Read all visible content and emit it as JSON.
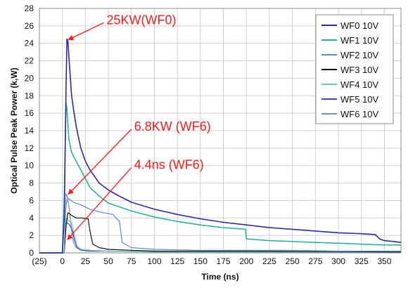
{
  "chart_data": {
    "type": "line",
    "xlabel": "Time (ns)",
    "ylabel": "Optical Pulse Peak Power (k,W)",
    "xlim": [
      -25,
      368
    ],
    "ylim": [
      0,
      28
    ],
    "x_ticks": [
      {
        "value": -25,
        "label": "(25)",
        "color": "#d40000"
      },
      {
        "value": 0,
        "label": "0"
      },
      {
        "value": 25,
        "label": "25"
      },
      {
        "value": 50,
        "label": "50"
      },
      {
        "value": 75,
        "label": "75"
      },
      {
        "value": 100,
        "label": "100"
      },
      {
        "value": 125,
        "label": "125"
      },
      {
        "value": 150,
        "label": "150"
      },
      {
        "value": 175,
        "label": "175"
      },
      {
        "value": 200,
        "label": "200"
      },
      {
        "value": 225,
        "label": "225"
      },
      {
        "value": 250,
        "label": "250"
      },
      {
        "value": 275,
        "label": "275"
      },
      {
        "value": 300,
        "label": "300"
      },
      {
        "value": 325,
        "label": "325"
      },
      {
        "value": 350,
        "label": "350"
      }
    ],
    "y_ticks": [
      0,
      2,
      4,
      6,
      8,
      10,
      12,
      14,
      16,
      18,
      20,
      22,
      24,
      26,
      28
    ],
    "grid": true,
    "legend_position": "top-right",
    "series": [
      {
        "name": "WF0 10V",
        "color": "#2a2aa8",
        "width": 1.6,
        "x": [
          -25,
          0,
          2,
          4,
          5,
          6,
          8,
          10,
          12,
          15,
          20,
          25,
          30,
          40,
          50,
          60,
          75,
          100,
          125,
          150,
          175,
          200,
          225,
          250,
          275,
          300,
          325,
          340,
          345,
          350,
          360,
          368
        ],
        "y": [
          0,
          0,
          4,
          19,
          24.5,
          24.3,
          21,
          18,
          16.5,
          14.5,
          12,
          10.5,
          9.5,
          8,
          7.2,
          6.6,
          5.8,
          5,
          4.4,
          3.9,
          3.5,
          3.2,
          2.9,
          2.7,
          2.5,
          2.3,
          2.2,
          2.1,
          1.6,
          1.4,
          1.3,
          1.2
        ]
      },
      {
        "name": "WF1 10V",
        "color": "#20b08a",
        "width": 1.5,
        "x": [
          -25,
          0,
          2,
          3,
          4,
          5,
          7,
          10,
          15,
          20,
          30,
          40,
          50,
          75,
          100,
          125,
          150,
          175,
          199,
          200,
          225,
          250,
          275,
          300,
          325,
          350,
          368
        ],
        "y": [
          0,
          0,
          6,
          12,
          17.2,
          16.5,
          13,
          11.5,
          10.5,
          9.5,
          7.5,
          6.5,
          5.7,
          4.8,
          4.1,
          3.6,
          3.2,
          2.9,
          2.7,
          1.6,
          1.4,
          1.3,
          1.2,
          1.1,
          1.0,
          0.9,
          0.9
        ]
      },
      {
        "name": "WF2 10V",
        "color": "#5b8fc7",
        "width": 1.2,
        "x": [
          -25,
          2,
          3,
          4,
          6,
          8,
          12,
          20,
          30,
          40,
          55,
          62,
          65,
          75,
          100,
          150,
          200,
          250,
          300,
          368
        ],
        "y": [
          0,
          0,
          3.5,
          5.5,
          6.3,
          6.1,
          5.8,
          5.5,
          5.0,
          4.7,
          4.4,
          3.6,
          1.2,
          0.6,
          0.4,
          0.3,
          0.3,
          0.3,
          0.2,
          0.2
        ]
      },
      {
        "name": "WF3 10V",
        "color": "#111111",
        "width": 1.2,
        "x": [
          -25,
          2,
          4,
          6,
          10,
          15,
          20,
          28,
          30,
          33,
          40,
          50,
          75,
          100,
          150,
          200,
          300,
          368
        ],
        "y": [
          0,
          0,
          3.0,
          4.6,
          4.3,
          4.0,
          4.0,
          3.9,
          2.5,
          1.0,
          0.6,
          0.4,
          0.3,
          0.2,
          0.2,
          0.2,
          0.15,
          0.1
        ]
      },
      {
        "name": "WF4 10V",
        "color": "#66d0a6",
        "width": 1.2,
        "x": [
          -25,
          2,
          3,
          4,
          6,
          8,
          10,
          13,
          16,
          20,
          30,
          50,
          100,
          200,
          368
        ],
        "y": [
          0,
          0,
          2.5,
          4.0,
          3.8,
          3.6,
          3.5,
          2.0,
          0.8,
          0.4,
          0.3,
          0.2,
          0.1,
          0.1,
          0.1
        ]
      },
      {
        "name": "WF5 10V",
        "color": "#4545b5",
        "width": 1.2,
        "x": [
          -25,
          2,
          3,
          4,
          5,
          7,
          9,
          11,
          13,
          16,
          20,
          30,
          50,
          100,
          200,
          368
        ],
        "y": [
          0,
          0,
          2.5,
          3.6,
          3.4,
          3.3,
          3.0,
          2.5,
          1.5,
          0.6,
          0.3,
          0.2,
          0.2,
          0.1,
          0.1,
          0.1
        ]
      },
      {
        "name": "WF6 10V",
        "color": "#6f93bd",
        "width": 1.2,
        "x": [
          -25,
          2,
          3,
          4,
          5,
          6,
          8,
          10,
          12,
          15,
          20,
          30,
          50,
          100,
          200,
          368
        ],
        "y": [
          0,
          0,
          3.0,
          6.8,
          6.6,
          6.2,
          4.5,
          2.5,
          1.2,
          0.6,
          0.4,
          0.3,
          0.2,
          0.15,
          0.1,
          0.1
        ]
      }
    ],
    "annotations": [
      {
        "text": "25KW(WF0)",
        "x": 48,
        "y": 26.2,
        "arrow_to": [
          5,
          24.5
        ]
      },
      {
        "text": "6.8KW (WF6)",
        "x": 78,
        "y": 14.0,
        "arrow_to": [
          5,
          6.8
        ]
      },
      {
        "text": "4.4ns (WF6)",
        "x": 78,
        "y": 9.6,
        "arrow_to": [
          4,
          1.6
        ]
      }
    ]
  }
}
